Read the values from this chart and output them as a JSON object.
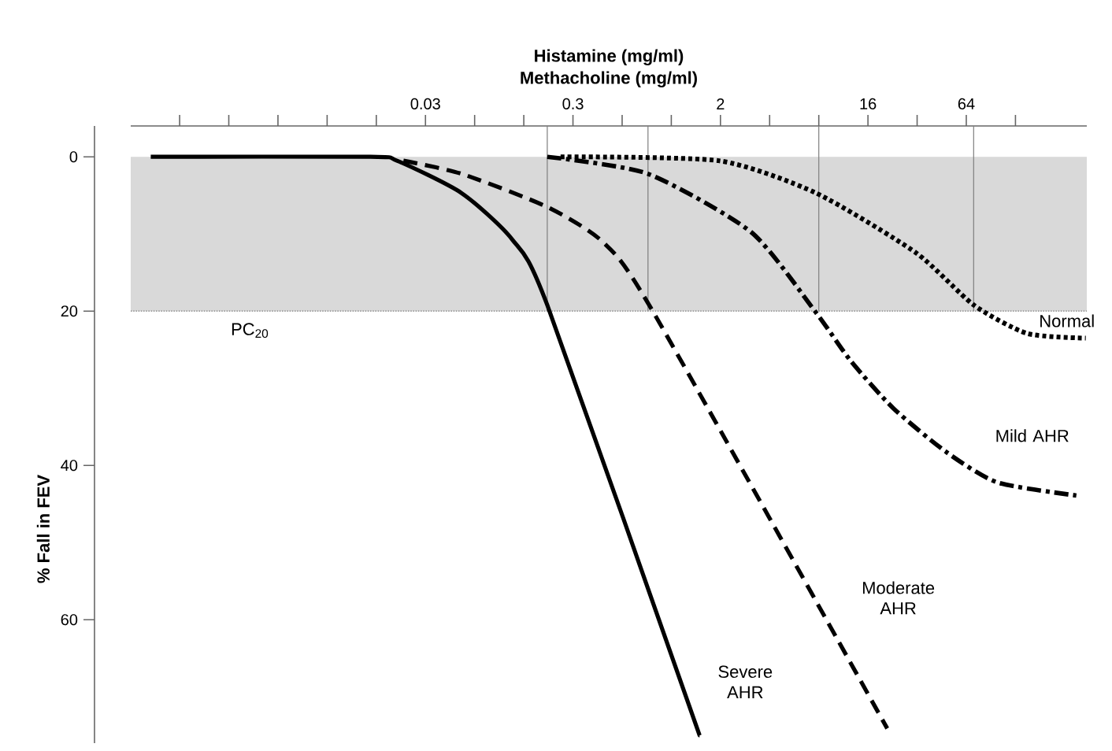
{
  "chart_data": {
    "type": "line",
    "title": "Histamine (mg/ml)",
    "xlabel": "Methacholine (mg/ml)",
    "ylabel": "% Fall in FEV",
    "log": "x",
    "xlim": [
      0.00049,
      350
    ],
    "ylim": [
      76,
      -4
    ],
    "xticks": [
      {
        "value": 0.0009765625,
        "label": null
      },
      {
        "value": 0.001953125,
        "label": null
      },
      {
        "value": 0.00390625,
        "label": null
      },
      {
        "value": 0.0078125,
        "label": null
      },
      {
        "value": 0.015625,
        "label": null
      },
      {
        "value": 0.03125,
        "label": "0.03"
      },
      {
        "value": 0.0625,
        "label": null
      },
      {
        "value": 0.125,
        "label": null
      },
      {
        "value": 0.25,
        "label": "0.3"
      },
      {
        "value": 0.5,
        "label": null
      },
      {
        "value": 1,
        "label": null
      },
      2,
      {
        "value": 4,
        "label": null
      },
      {
        "value": 8,
        "label": null
      },
      16,
      {
        "value": 32,
        "label": null
      },
      64,
      {
        "value": 128,
        "label": null
      }
    ],
    "yticks": [
      0,
      20,
      40,
      60
    ],
    "series": [
      {
        "name": "Normal",
        "color": "#000000",
        "line_style": "dotted",
        "x": [
          0.21,
          1.95,
          7.7,
          31.3,
          71,
          151,
          345
        ],
        "values": [
          0,
          0.5,
          4.7,
          12.4,
          19.2,
          22.9,
          23.5
        ]
      },
      {
        "name": "Mild AHR",
        "color": "#000000",
        "line_style": "dashdot",
        "x": [
          0.174,
          0.72,
          3.1,
          7.7,
          12.6,
          22.9,
          47.8,
          99,
          302
        ],
        "values": [
          0,
          2.2,
          9.8,
          20.2,
          26.5,
          32.6,
          38.2,
          42.2,
          43.9
        ]
      },
      {
        "name": "Moderate AHR",
        "color": "#000000",
        "line_style": "dashed",
        "x": [
          0.0229,
          0.052,
          0.174,
          0.384,
          0.77,
          21.0
        ],
        "values": [
          0.5,
          2.2,
          6.5,
          11.1,
          20.0,
          74.1
        ]
      },
      {
        "name": "Severe AHR",
        "color": "#000000",
        "line_style": "solid",
        "x": [
          0.00065,
          0.0144,
          0.0209,
          0.052,
          0.106,
          0.174,
          1.49
        ],
        "values": [
          0,
          0,
          0.5,
          4.7,
          10.7,
          19.2,
          75
        ]
      }
    ],
    "ref_lines": [
      {
        "axis": "y",
        "value": 20,
        "label": "PC$_{20}$",
        "color": "#7f7f7f",
        "line_style": "dotted"
      },
      {
        "axis": "x",
        "value": 0.174,
        "color": "#7f7f7f"
      },
      {
        "axis": "x",
        "value": 0.72,
        "color": "#7f7f7f"
      },
      {
        "axis": "x",
        "value": 8,
        "color": "#7f7f7f"
      },
      {
        "axis": "x",
        "value": 71,
        "color": "#7f7f7f"
      }
    ],
    "bands": [
      {
        "axis": "y",
        "from": 0,
        "to": 20,
        "color": "#d9d9d9"
      }
    ],
    "grid": false
  }
}
